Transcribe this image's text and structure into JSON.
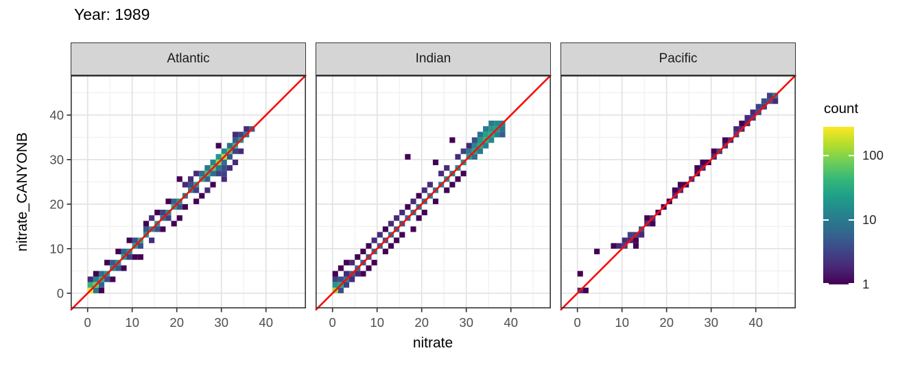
{
  "chart_data": {
    "type": "heatmap",
    "subtype": "bin2d-faceted-scatter",
    "title": "Year: 1989",
    "xlabel": "nitrate",
    "ylabel": "nitrate_CANYONB",
    "xlim": [
      -3.8,
      49.0
    ],
    "ylim": [
      -3.4,
      48.9
    ],
    "x_major_ticks": [
      0,
      10,
      20,
      30,
      40
    ],
    "y_major_ticks": [
      0,
      10,
      20,
      30,
      40
    ],
    "minor_ticks": [
      5,
      15,
      25,
      35,
      45
    ],
    "grid": true,
    "bin_width": 1.25,
    "identity_line": {
      "color": "#f80d0d",
      "width": 2.6
    },
    "legend": {
      "title": "count",
      "position": "right",
      "breaks": [
        {
          "label": "100",
          "log10": 2
        },
        {
          "label": "10",
          "log10": 1
        },
        {
          "label": "1",
          "log10": 0
        }
      ]
    },
    "color_scale": {
      "name": "viridis",
      "trans": "log10",
      "log_domain": [
        0,
        2.45
      ],
      "stops": [
        "#440154",
        "#482878",
        "#3e4989",
        "#31688e",
        "#26828e",
        "#1f9e89",
        "#35b779",
        "#6ece58",
        "#b5de2b",
        "#fde725"
      ]
    },
    "style": {
      "panel_background": "#ffffff",
      "grid_major_color": "#e3e3e3",
      "grid_minor_color": "#f0f0f0",
      "panel_border_color": "#333333",
      "strip_fill": "#d5d5d5",
      "strip_text_color": "#1a1a1a",
      "tick_label_color": "#4d4d4d",
      "axis_tick_color": "#333333"
    },
    "facets": [
      {
        "label": "Atlantic",
        "bins": [
          [
            0,
            0,
            250
          ],
          [
            1,
            1,
            80
          ],
          [
            2,
            2,
            35
          ],
          [
            3,
            3,
            22
          ],
          [
            4,
            4,
            15
          ],
          [
            5,
            5,
            18
          ],
          [
            6,
            6,
            22
          ],
          [
            7,
            7,
            16
          ],
          [
            8,
            8,
            24
          ],
          [
            9,
            9,
            30
          ],
          [
            10,
            10,
            20
          ],
          [
            11,
            11,
            15
          ],
          [
            12,
            12,
            22
          ],
          [
            13,
            13,
            10
          ],
          [
            14,
            14,
            18
          ],
          [
            15,
            15,
            28
          ],
          [
            16,
            16,
            20
          ],
          [
            17,
            17,
            12
          ],
          [
            18,
            18,
            15
          ],
          [
            19,
            19,
            22
          ],
          [
            20,
            20,
            30
          ],
          [
            21,
            21,
            45
          ],
          [
            22,
            22,
            70
          ],
          [
            23,
            23,
            110
          ],
          [
            24,
            24,
            150
          ],
          [
            25,
            25,
            60
          ],
          [
            26,
            26,
            40
          ],
          [
            27,
            27,
            20
          ],
          [
            28,
            28,
            10
          ],
          [
            29,
            29,
            6
          ],
          [
            0,
            1,
            40
          ],
          [
            1,
            2,
            12
          ],
          [
            2,
            3,
            8
          ],
          [
            4,
            5,
            5
          ],
          [
            6,
            7,
            6
          ],
          [
            8,
            9,
            4
          ],
          [
            10,
            11,
            5
          ],
          [
            13,
            14,
            3
          ],
          [
            15,
            16,
            6
          ],
          [
            18,
            19,
            4
          ],
          [
            20,
            21,
            8
          ],
          [
            21,
            22,
            10
          ],
          [
            22,
            23,
            14
          ],
          [
            23,
            24,
            20
          ],
          [
            24,
            25,
            15
          ],
          [
            25,
            26,
            8
          ],
          [
            26,
            27,
            5
          ],
          [
            27,
            28,
            3
          ],
          [
            28,
            29,
            2
          ],
          [
            1,
            0,
            10
          ],
          [
            2,
            1,
            6
          ],
          [
            3,
            2,
            4
          ],
          [
            5,
            4,
            5
          ],
          [
            7,
            6,
            3
          ],
          [
            9,
            8,
            4
          ],
          [
            12,
            11,
            4
          ],
          [
            14,
            13,
            3
          ],
          [
            16,
            15,
            5
          ],
          [
            19,
            18,
            3
          ],
          [
            21,
            20,
            6
          ],
          [
            22,
            21,
            8
          ],
          [
            23,
            22,
            10
          ],
          [
            24,
            23,
            8
          ],
          [
            25,
            24,
            5
          ],
          [
            26,
            25,
            3
          ],
          [
            0,
            2,
            2
          ],
          [
            1,
            3,
            1
          ],
          [
            3,
            5,
            1
          ],
          [
            2,
            0,
            1
          ],
          [
            4,
            2,
            1
          ],
          [
            5,
            7,
            1
          ],
          [
            7,
            9,
            1
          ],
          [
            9,
            6,
            1
          ],
          [
            10,
            12,
            1
          ],
          [
            11,
            9,
            2
          ],
          [
            12,
            14,
            1
          ],
          [
            14,
            16,
            1
          ],
          [
            15,
            12,
            1
          ],
          [
            16,
            20,
            1
          ],
          [
            16,
            13,
            1
          ],
          [
            17,
            15,
            1
          ],
          [
            18,
            20,
            2
          ],
          [
            19,
            16,
            1
          ],
          [
            20,
            17,
            1
          ],
          [
            21,
            18,
            2
          ],
          [
            23,
            26,
            1
          ],
          [
            24,
            20,
            2
          ],
          [
            23,
            21,
            3
          ],
          [
            24,
            21,
            3
          ],
          [
            24,
            22,
            4
          ],
          [
            25,
            22,
            2
          ],
          [
            26,
            23,
            2
          ],
          [
            22,
            19,
            1
          ],
          [
            13,
            11,
            1
          ],
          [
            6,
            4,
            1
          ],
          [
            8,
            6,
            1
          ],
          [
            11,
            13,
            2
          ],
          [
            17,
            19,
            2
          ],
          [
            19,
            21,
            2
          ],
          [
            26,
            28,
            2
          ],
          [
            27,
            25,
            2
          ]
        ]
      },
      {
        "label": "Indian",
        "bins": [
          [
            0,
            0,
            130
          ],
          [
            1,
            1,
            30
          ],
          [
            2,
            2,
            12
          ],
          [
            3,
            3,
            6
          ],
          [
            4,
            4,
            8
          ],
          [
            5,
            5,
            6
          ],
          [
            6,
            6,
            5
          ],
          [
            7,
            7,
            8
          ],
          [
            8,
            8,
            6
          ],
          [
            9,
            9,
            5
          ],
          [
            10,
            10,
            8
          ],
          [
            11,
            11,
            6
          ],
          [
            12,
            12,
            5
          ],
          [
            13,
            13,
            8
          ],
          [
            14,
            14,
            10
          ],
          [
            15,
            15,
            8
          ],
          [
            16,
            16,
            10
          ],
          [
            17,
            17,
            12
          ],
          [
            18,
            18,
            10
          ],
          [
            19,
            19,
            12
          ],
          [
            20,
            20,
            15
          ],
          [
            21,
            21,
            12
          ],
          [
            22,
            22,
            15
          ],
          [
            23,
            23,
            18
          ],
          [
            24,
            24,
            20
          ],
          [
            25,
            25,
            25
          ],
          [
            26,
            26,
            30
          ],
          [
            27,
            27,
            35
          ],
          [
            28,
            28,
            30
          ],
          [
            29,
            29,
            22
          ],
          [
            30,
            30,
            12
          ],
          [
            25,
            26,
            14
          ],
          [
            26,
            27,
            20
          ],
          [
            27,
            28,
            25
          ],
          [
            28,
            29,
            20
          ],
          [
            29,
            30,
            15
          ],
          [
            26,
            25,
            10
          ],
          [
            27,
            26,
            12
          ],
          [
            28,
            27,
            15
          ],
          [
            29,
            28,
            12
          ],
          [
            30,
            29,
            8
          ],
          [
            27,
            29,
            10
          ],
          [
            26,
            28,
            8
          ],
          [
            28,
            30,
            10
          ],
          [
            30,
            28,
            5
          ],
          [
            24,
            25,
            10
          ],
          [
            25,
            24,
            8
          ],
          [
            0,
            1,
            20
          ],
          [
            1,
            0,
            4
          ],
          [
            0,
            2,
            3
          ],
          [
            0,
            3,
            1
          ],
          [
            1,
            2,
            4
          ],
          [
            1,
            4,
            1
          ],
          [
            2,
            1,
            3
          ],
          [
            2,
            3,
            2
          ],
          [
            2,
            5,
            1
          ],
          [
            3,
            2,
            2
          ],
          [
            3,
            5,
            2
          ],
          [
            4,
            3,
            2
          ],
          [
            4,
            6,
            1
          ],
          [
            5,
            3,
            1
          ],
          [
            5,
            7,
            1
          ],
          [
            6,
            8,
            1
          ],
          [
            7,
            5,
            1
          ],
          [
            7,
            9,
            2
          ],
          [
            8,
            10,
            2
          ],
          [
            9,
            7,
            1
          ],
          [
            10,
            8,
            1
          ],
          [
            10,
            12,
            2
          ],
          [
            11,
            9,
            1
          ],
          [
            12,
            10,
            1
          ],
          [
            12,
            14,
            2
          ],
          [
            13,
            15,
            1
          ],
          [
            13,
            24,
            1
          ],
          [
            14,
            11,
            1
          ],
          [
            15,
            17,
            1
          ],
          [
            16,
            14,
            1
          ],
          [
            17,
            19,
            2
          ],
          [
            18,
            16,
            1
          ],
          [
            18,
            23,
            1
          ],
          [
            19,
            21,
            2
          ],
          [
            20,
            18,
            1
          ],
          [
            21,
            19,
            1
          ],
          [
            21,
            27,
            1
          ],
          [
            22,
            24,
            2
          ],
          [
            23,
            21,
            1
          ],
          [
            24,
            26,
            2
          ],
          [
            14,
            16,
            2
          ],
          [
            16,
            18,
            2
          ],
          [
            9,
            11,
            1
          ],
          [
            6,
            4,
            1
          ],
          [
            11,
            13,
            2
          ],
          [
            23,
            25,
            3
          ],
          [
            22,
            20,
            1
          ],
          [
            25,
            27,
            4
          ],
          [
            20,
            22,
            2
          ],
          [
            15,
            13,
            1
          ]
        ]
      },
      {
        "label": "Pacific",
        "bins": [
          [
            0,
            0,
            2
          ],
          [
            1,
            0,
            1
          ],
          [
            0,
            3,
            1
          ],
          [
            3,
            7,
            1
          ],
          [
            6,
            8,
            1
          ],
          [
            7,
            8,
            2
          ],
          [
            8,
            8,
            3
          ],
          [
            8,
            9,
            2
          ],
          [
            9,
            9,
            2
          ],
          [
            9,
            10,
            3
          ],
          [
            10,
            10,
            3
          ],
          [
            10,
            9,
            1
          ],
          [
            11,
            11,
            4
          ],
          [
            11,
            10,
            2
          ],
          [
            12,
            12,
            2
          ],
          [
            12,
            13,
            1
          ],
          [
            13,
            13,
            2
          ],
          [
            10,
            8,
            1
          ],
          [
            13,
            12,
            1
          ],
          [
            14,
            14,
            1
          ],
          [
            15,
            15,
            1
          ],
          [
            16,
            16,
            1
          ],
          [
            17,
            17,
            2
          ],
          [
            17,
            18,
            1
          ],
          [
            18,
            18,
            2
          ],
          [
            18,
            19,
            1
          ],
          [
            19,
            19,
            1
          ],
          [
            20,
            20,
            2
          ],
          [
            21,
            21,
            1
          ],
          [
            21,
            22,
            1
          ],
          [
            22,
            22,
            2
          ],
          [
            22,
            23,
            1
          ],
          [
            23,
            23,
            1
          ],
          [
            24,
            24,
            2
          ],
          [
            24,
            25,
            1
          ],
          [
            25,
            25,
            3
          ],
          [
            26,
            26,
            2
          ],
          [
            26,
            27,
            1
          ],
          [
            27,
            27,
            2
          ],
          [
            28,
            28,
            3
          ],
          [
            28,
            29,
            2
          ],
          [
            29,
            29,
            2
          ],
          [
            29,
            30,
            1
          ],
          [
            30,
            30,
            2
          ],
          [
            30,
            31,
            2
          ],
          [
            31,
            31,
            3
          ],
          [
            31,
            32,
            2
          ],
          [
            32,
            32,
            4
          ],
          [
            32,
            33,
            3
          ],
          [
            33,
            33,
            3
          ],
          [
            33,
            34,
            4
          ],
          [
            34,
            34,
            5
          ],
          [
            34,
            35,
            3
          ],
          [
            35,
            35,
            10
          ],
          [
            35,
            34,
            2
          ]
        ]
      }
    ]
  }
}
